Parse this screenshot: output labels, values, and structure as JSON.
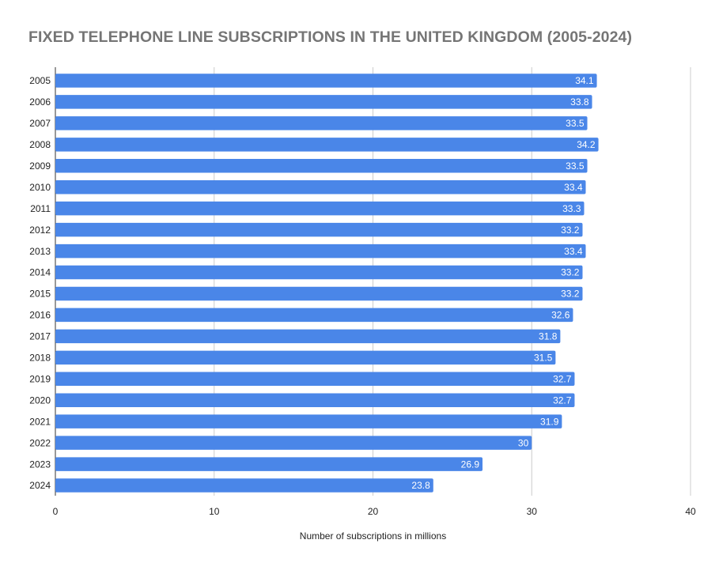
{
  "chart_data": {
    "type": "bar",
    "orientation": "horizontal",
    "title": "FIXED TELEPHONE LINE SUBSCRIPTIONS IN THE UNITED KINGDOM (2005-2024)",
    "xlabel": "Number of subscriptions in millions",
    "ylabel": "",
    "categories": [
      "2005",
      "2006",
      "2007",
      "2008",
      "2009",
      "2010",
      "2011",
      "2012",
      "2013",
      "2014",
      "2015",
      "2016",
      "2017",
      "2018",
      "2019",
      "2020",
      "2021",
      "2022",
      "2023",
      "2024"
    ],
    "values": [
      34.1,
      33.8,
      33.5,
      34.2,
      33.5,
      33.4,
      33.3,
      33.2,
      33.4,
      33.2,
      33.2,
      32.6,
      31.8,
      31.5,
      32.7,
      32.7,
      31.9,
      30,
      26.9,
      23.8
    ],
    "value_labels": [
      "34.1",
      "33.8",
      "33.5",
      "34.2",
      "33.5",
      "33.4",
      "33.3",
      "33.2",
      "33.4",
      "33.2",
      "33.2",
      "32.6",
      "31.8",
      "31.5",
      "32.7",
      "32.7",
      "31.9",
      "30",
      "26.9",
      "23.8"
    ],
    "xlim": [
      0,
      40
    ],
    "x_ticks": [
      "0",
      "10",
      "20",
      "30",
      "40"
    ],
    "x_tick_values": [
      0,
      10,
      20,
      30,
      40
    ],
    "grid": true,
    "legend": "none",
    "bar_color": "#4a86e8",
    "title_color": "#757575",
    "grid_color": "#cccccc"
  }
}
